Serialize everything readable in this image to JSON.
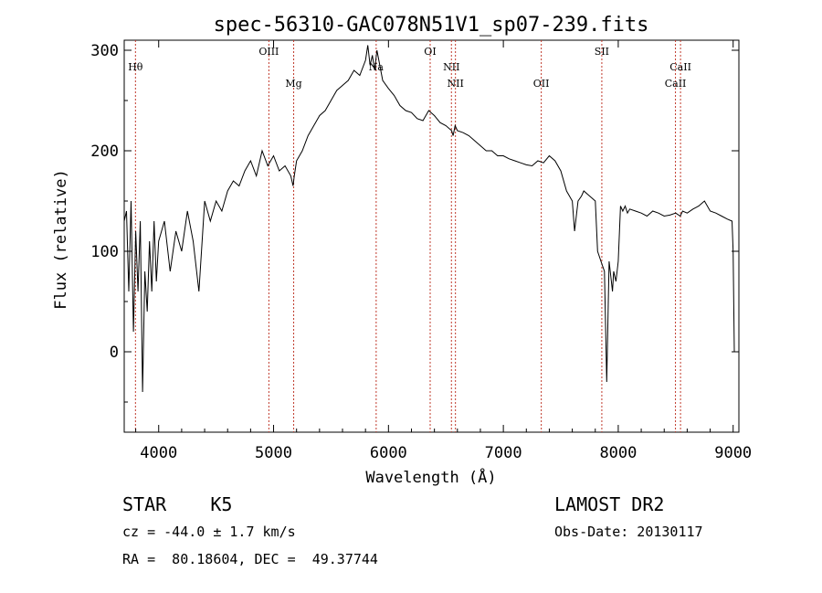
{
  "chart_data": {
    "type": "line",
    "title": "spec-56310-GAC078N51V1_sp07-239.fits",
    "xlabel": "Wavelength (Å)",
    "ylabel": "Flux (relative)",
    "xlim": [
      3700,
      9050
    ],
    "ylim": [
      -80,
      310
    ],
    "xticks": [
      4000,
      5000,
      6000,
      7000,
      8000,
      9000
    ],
    "yticks": [
      0,
      100,
      200,
      300
    ],
    "grid": false,
    "series": [
      {
        "x": [
          3700,
          3720,
          3740,
          3760,
          3780,
          3800,
          3820,
          3840,
          3860,
          3880,
          3900,
          3920,
          3940,
          3960,
          3980,
          4000,
          4050,
          4100,
          4150,
          4200,
          4250,
          4300,
          4350,
          4400,
          4450,
          4500,
          4550,
          4600,
          4650,
          4700,
          4750,
          4800,
          4850,
          4900,
          4950,
          5000,
          5050,
          5100,
          5150,
          5170,
          5180,
          5200,
          5250,
          5300,
          5350,
          5400,
          5450,
          5500,
          5550,
          5600,
          5650,
          5700,
          5750,
          5800,
          5820,
          5840,
          5860,
          5880,
          5900,
          5950,
          6000,
          6050,
          6100,
          6150,
          6200,
          6250,
          6300,
          6350,
          6400,
          6450,
          6500,
          6550,
          6563,
          6580,
          6600,
          6650,
          6700,
          6750,
          6800,
          6850,
          6900,
          6950,
          7000,
          7050,
          7100,
          7150,
          7200,
          7250,
          7300,
          7350,
          7400,
          7450,
          7500,
          7550,
          7600,
          7620,
          7650,
          7680,
          7700,
          7750,
          7800,
          7820,
          7850,
          7880,
          7900,
          7920,
          7940,
          7950,
          7960,
          7980,
          8000,
          8020,
          8040,
          8060,
          8080,
          8100,
          8150,
          8200,
          8250,
          8300,
          8350,
          8400,
          8450,
          8500,
          8540,
          8560,
          8600,
          8650,
          8700,
          8750,
          8800,
          8850,
          8900,
          8950,
          8990,
          9000,
          9010
        ],
        "y": [
          130,
          140,
          60,
          150,
          20,
          120,
          60,
          130,
          -40,
          80,
          40,
          110,
          60,
          130,
          70,
          110,
          130,
          80,
          120,
          100,
          140,
          110,
          60,
          150,
          130,
          150,
          140,
          160,
          170,
          165,
          180,
          190,
          175,
          200,
          185,
          195,
          180,
          185,
          175,
          165,
          175,
          190,
          200,
          215,
          225,
          235,
          240,
          250,
          260,
          265,
          270,
          280,
          275,
          290,
          305,
          285,
          295,
          280,
          300,
          270,
          262,
          255,
          245,
          240,
          238,
          232,
          230,
          240,
          235,
          228,
          225,
          220,
          215,
          225,
          220,
          218,
          215,
          210,
          205,
          200,
          200,
          195,
          195,
          192,
          190,
          188,
          186,
          185,
          190,
          188,
          195,
          190,
          180,
          160,
          150,
          120,
          150,
          155,
          160,
          155,
          150,
          100,
          90,
          80,
          -30,
          90,
          70,
          60,
          80,
          70,
          90,
          145,
          140,
          145,
          138,
          142,
          140,
          138,
          135,
          140,
          138,
          135,
          136,
          138,
          135,
          140,
          138,
          142,
          145,
          150,
          140,
          138,
          135,
          132,
          130,
          100,
          0
        ]
      }
    ],
    "line_labels": [
      {
        "name": "Hθ",
        "x": 3798,
        "row": 2
      },
      {
        "name": "OIII",
        "x": 4959,
        "row": 1
      },
      {
        "name": "Mg",
        "x": 5175,
        "row": 3
      },
      {
        "name": "Na",
        "x": 5893,
        "row": 2
      },
      {
        "name": "OI",
        "x": 6363,
        "row": 1
      },
      {
        "name": "NII",
        "x": 6548,
        "row": 2
      },
      {
        "name": "NII",
        "x": 6583,
        "row": 3
      },
      {
        "name": "OII",
        "x": 7330,
        "row": 3
      },
      {
        "name": "SII",
        "x": 7857,
        "row": 1
      },
      {
        "name": "CaII",
        "x": 8542,
        "row": 2
      },
      {
        "name": "CaII",
        "x": 8498,
        "row": 3
      }
    ],
    "line_color": "#c0392b"
  },
  "footer": {
    "object": "STAR    K5",
    "survey": "LAMOST DR2",
    "cz": "cz = -44.0 ± 1.7 km/s",
    "obsdate": "Obs-Date: 20130117",
    "radec": "RA =  80.18604, DEC =  49.37744"
  }
}
